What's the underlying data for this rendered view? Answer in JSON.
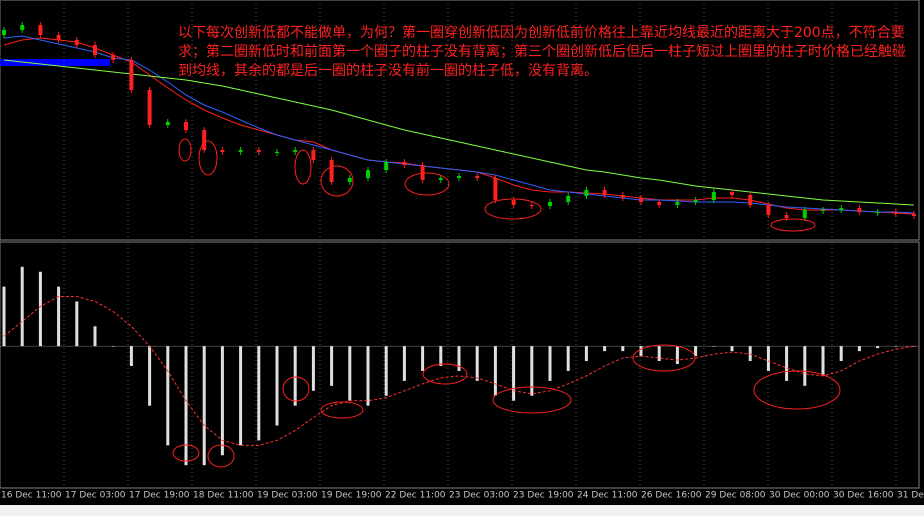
{
  "chart_data": {
    "type": "candlestick",
    "annotation": "以下每次创新低都不能做单，为何？第一圈穿创新低因为创新低前价格往上靠近均线最近的距离大于200点，不符合要求；第二圈新低时和前面第一个圈子的柱子没有背离；第三个圈创新低后但后一柱子短过上圈里的柱子时价格已经触碰到均线，其余的都是后一圈的柱子没有前一圈的柱子低，没有背离。",
    "x_labels": [
      "16 Dec 11:00",
      "17 Dec 03:00",
      "17 Dec 19:00",
      "18 Dec 11:00",
      "19 Dec 03:00",
      "19 Dec 19:00",
      "22 Dec 11:00",
      "23 Dec 03:00",
      "23 Dec 19:00",
      "24 Dec 11:00",
      "26 Dec 16:00",
      "29 Dec 08:00",
      "30 Dec 00:00",
      "30 Dec 16:00",
      "31 Dec"
    ],
    "up_color": "#00d000",
    "down_color": "#ff2020",
    "ylim": [
      0,
      240
    ],
    "open": [
      205,
      210,
      215,
      205,
      200,
      195,
      185,
      180,
      150,
      115,
      118,
      110,
      90,
      88,
      90,
      88,
      88,
      90,
      80,
      58,
      62,
      70,
      78,
      75,
      60,
      62,
      64,
      62,
      40,
      35,
      34,
      38,
      44,
      50,
      45,
      42,
      38,
      35,
      38,
      40,
      48,
      45,
      35,
      25,
      22,
      30,
      30,
      32,
      28,
      28,
      26
    ],
    "close": [
      210,
      215,
      205,
      200,
      195,
      185,
      180,
      150,
      115,
      118,
      110,
      90,
      88,
      90,
      88,
      88,
      90,
      80,
      58,
      62,
      70,
      78,
      75,
      60,
      62,
      64,
      62,
      40,
      35,
      34,
      38,
      44,
      50,
      45,
      42,
      38,
      35,
      38,
      40,
      48,
      45,
      35,
      25,
      22,
      30,
      30,
      32,
      28,
      28,
      26,
      24
    ],
    "ma_series": [
      {
        "color": "#ff2020",
        "values": [
          195,
          200,
          202,
          200,
          198,
          192,
          185,
          178,
          165,
          152,
          140,
          130,
          122,
          115,
          110,
          105,
          100,
          98,
          90,
          85,
          80,
          78,
          77,
          74,
          72,
          70,
          68,
          62,
          55,
          50,
          48,
          48,
          47,
          46,
          44,
          42,
          40,
          40,
          40,
          42,
          42,
          40,
          36,
          32,
          30,
          30,
          30,
          29,
          28,
          27,
          26
        ]
      },
      {
        "color": "#3060ff",
        "values": [
          202,
          204,
          200,
          196,
          192,
          188,
          182,
          180,
          170,
          158,
          145,
          135,
          128,
          120,
          112,
          105,
          100,
          95,
          90,
          85,
          80,
          78,
          76,
          74,
          72,
          70,
          68,
          65,
          60,
          55,
          50,
          48,
          46,
          44,
          42,
          40,
          40,
          39,
          38,
          38,
          38,
          37,
          35,
          33,
          32,
          31,
          30,
          29,
          28,
          28,
          27
        ]
      },
      {
        "color": "#80ff40",
        "values": [
          180,
          178,
          176,
          174,
          172,
          170,
          168,
          166,
          164,
          162,
          160,
          157,
          154,
          150,
          146,
          142,
          138,
          134,
          130,
          125,
          120,
          115,
          110,
          106,
          102,
          98,
          94,
          90,
          86,
          82,
          78,
          74,
          70,
          68,
          65,
          62,
          60,
          57,
          54,
          52,
          50,
          48,
          46,
          44,
          42,
          40,
          39,
          38,
          37,
          36,
          35
        ]
      }
    ],
    "macd_ylim": [
      -143,
      105
    ],
    "macd_color": "#e0e0e0",
    "macd": [
      60,
      80,
      75,
      60,
      45,
      20,
      0,
      -20,
      -60,
      -100,
      -120,
      -120,
      -110,
      -100,
      -95,
      -80,
      -60,
      -45,
      -40,
      -55,
      -60,
      -50,
      -35,
      -25,
      -20,
      -25,
      -35,
      -50,
      -55,
      -50,
      -35,
      -25,
      -15,
      -5,
      -5,
      -10,
      -15,
      -18,
      -10,
      0,
      -5,
      -15,
      -25,
      -35,
      -40,
      -30,
      -15,
      -5,
      -2,
      0,
      0
    ],
    "signal_color": "#ff3030",
    "signal": [
      10,
      25,
      40,
      50,
      50,
      45,
      35,
      20,
      0,
      -25,
      -55,
      -80,
      -95,
      -100,
      -100,
      -95,
      -85,
      -72,
      -60,
      -55,
      -55,
      -52,
      -45,
      -38,
      -32,
      -30,
      -32,
      -38,
      -45,
      -48,
      -45,
      -38,
      -30,
      -20,
      -12,
      -10,
      -12,
      -14,
      -12,
      -8,
      -6,
      -8,
      -15,
      -22,
      -28,
      -30,
      -25,
      -15,
      -8,
      -3,
      0
    ]
  }
}
